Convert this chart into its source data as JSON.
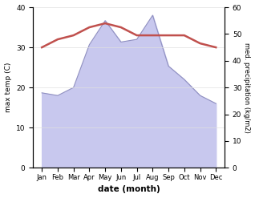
{
  "months": [
    "Jan",
    "Feb",
    "Mar",
    "Apr",
    "May",
    "Jun",
    "Jul",
    "Aug",
    "Sep",
    "Oct",
    "Nov",
    "Dec"
  ],
  "temp": [
    30,
    32,
    33,
    35,
    36,
    35,
    33,
    33,
    33,
    33,
    31,
    30
  ],
  "precip": [
    28,
    27,
    30,
    46,
    55,
    47,
    48,
    57,
    38,
    33,
    27,
    24
  ],
  "temp_color": "#c0504d",
  "precip_fill_color": "#c8c8ee",
  "precip_line_color": "#9090c0",
  "ylim_temp": [
    0,
    40
  ],
  "ylim_precip": [
    0,
    60
  ],
  "yticks_temp": [
    0,
    10,
    20,
    30,
    40
  ],
  "yticks_precip": [
    0,
    10,
    20,
    30,
    40,
    50,
    60
  ],
  "ylabel_left": "max temp (C)",
  "ylabel_right": "med. precipitation (kg/m2)",
  "xlabel": "date (month)",
  "bg_color": "#ffffff",
  "grid_color": "#e0e0e0"
}
